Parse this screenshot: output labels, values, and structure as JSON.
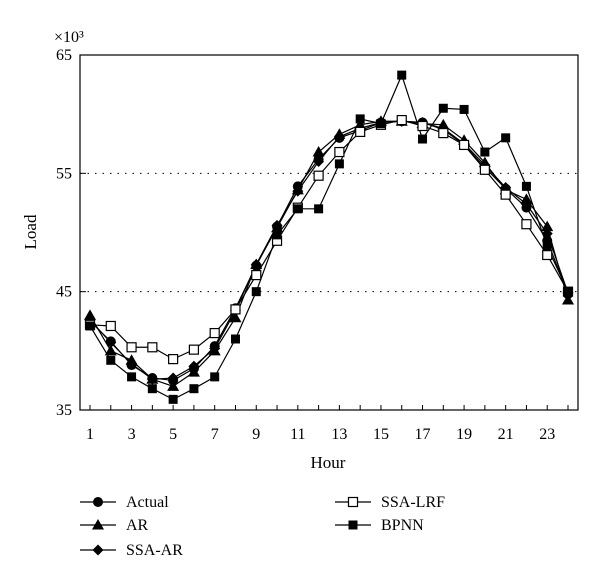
{
  "chart_data": {
    "type": "line",
    "xlabel": "Hour",
    "ylabel": "Load",
    "y_multiplier": "×10³",
    "xlim": [
      1,
      24
    ],
    "ylim": [
      35,
      65
    ],
    "x_ticks": [
      1,
      3,
      5,
      7,
      9,
      11,
      13,
      15,
      17,
      19,
      21,
      23
    ],
    "y_ticks": [
      35,
      45,
      55,
      65
    ],
    "y_gridlines": [
      45,
      55
    ],
    "grid": "dotted horizontal at 45 and 55",
    "legend_position": "bottom",
    "x": [
      1,
      2,
      3,
      4,
      5,
      6,
      7,
      8,
      9,
      10,
      11,
      12,
      13,
      14,
      15,
      16,
      17,
      18,
      19,
      20,
      21,
      22,
      23,
      24
    ],
    "series": [
      {
        "name": "Actual",
        "marker": "circle",
        "values": [
          42.5,
          40.8,
          38.8,
          37.7,
          37.5,
          38.5,
          40.4,
          43.6,
          47.2,
          50.5,
          53.9,
          56.2,
          58.0,
          58.6,
          59.3,
          59.4,
          59.3,
          58.7,
          57.4,
          55.5,
          53.7,
          52.1,
          49.3,
          44.8
        ]
      },
      {
        "name": "AR",
        "marker": "triangle",
        "values": [
          43.0,
          40.0,
          39.2,
          37.6,
          37.0,
          38.2,
          40.0,
          42.8,
          47.3,
          50.4,
          53.6,
          56.8,
          58.3,
          59.1,
          59.4,
          59.4,
          59.2,
          59.1,
          57.8,
          55.9,
          53.6,
          52.8,
          50.5,
          44.3
        ]
      },
      {
        "name": "SSA-AR",
        "marker": "diamond",
        "values": [
          42.6,
          40.7,
          38.9,
          37.6,
          37.7,
          38.7,
          40.2,
          43.4,
          47.3,
          50.6,
          53.5,
          56.0,
          58.1,
          58.8,
          59.3,
          59.4,
          59.3,
          58.8,
          57.5,
          55.7,
          53.8,
          52.4,
          49.9,
          44.9
        ]
      },
      {
        "name": "SSA-LRF",
        "marker": "open-square",
        "values": [
          42.2,
          42.1,
          40.3,
          40.3,
          39.3,
          40.1,
          41.5,
          43.5,
          46.4,
          49.3,
          52.1,
          54.8,
          56.8,
          58.5,
          59.1,
          59.5,
          59.0,
          58.4,
          57.4,
          55.3,
          53.2,
          50.7,
          48.1,
          45.0
        ]
      },
      {
        "name": "BPNN",
        "marker": "filled-square",
        "values": [
          42.1,
          39.2,
          37.8,
          36.8,
          35.9,
          36.8,
          37.8,
          41.0,
          45.0,
          49.8,
          52.0,
          52.0,
          55.8,
          59.6,
          59.2,
          63.3,
          57.9,
          60.5,
          60.4,
          56.8,
          58.0,
          53.9,
          48.8,
          45.0
        ]
      }
    ]
  }
}
